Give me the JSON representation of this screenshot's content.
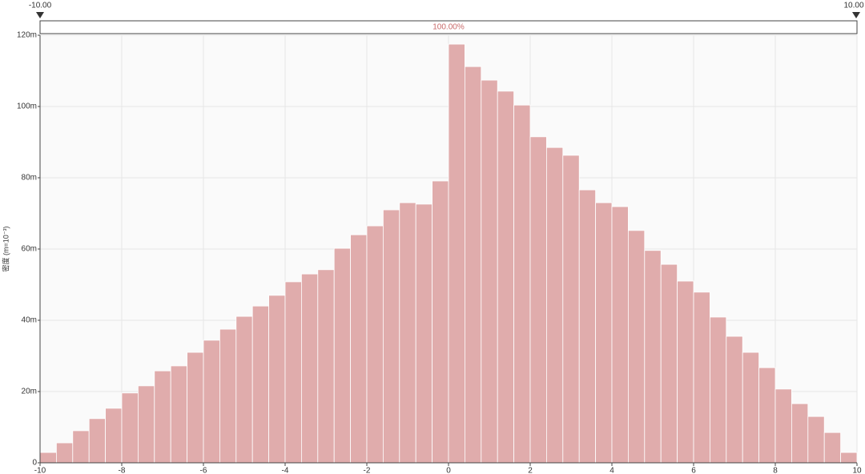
{
  "chart_data": {
    "type": "histogram",
    "y_label": "密度 (m=10⁻³)",
    "range_slider": {
      "min_label": "-10.00",
      "max_label": "10.00",
      "percent_label": "100.00%"
    },
    "bins": [
      -10,
      -9.6,
      -9.2,
      -8.8,
      -8.4,
      -8,
      -7.6,
      -7.2,
      -6.8,
      -6.4,
      -6,
      -5.6,
      -5.2,
      -4.8,
      -4.4,
      -4,
      -3.6,
      -3.2,
      -2.8,
      -2.4,
      -2,
      -1.6,
      -1.2,
      -0.8,
      -0.4,
      0,
      0.4,
      0.8,
      1.2,
      1.6,
      2,
      2.4,
      2.8,
      3.2,
      3.6,
      4,
      4.4,
      4.8,
      5.2,
      5.6,
      6,
      6.4,
      6.8,
      7.2,
      7.6,
      8,
      8.4,
      8.8,
      9.2,
      9.6,
      10
    ],
    "values": [
      2.9,
      5.6,
      9.0,
      12.4,
      15.3,
      19.6,
      21.6,
      25.8,
      27.2,
      31.0,
      34.4,
      37.5,
      41.1,
      44.0,
      47.0,
      50.8,
      53.0,
      54.2,
      60.2,
      64.0,
      66.5,
      71.0,
      73.0,
      72.6,
      79.1,
      117.5,
      111.2,
      107.4,
      104.3,
      100.4,
      91.5,
      88.5,
      86.3,
      76.6,
      73.0,
      71.9,
      65.2,
      59.6,
      55.7,
      51.0,
      47.9,
      40.9,
      35.5,
      31.0,
      26.7,
      20.7,
      16.6,
      13.0,
      8.5,
      2.9
    ],
    "color": "#e0acac",
    "xlim": [
      -10,
      10
    ],
    "xticks": [
      -10,
      -8,
      -6,
      -4,
      -2,
      0,
      2,
      4,
      6,
      8,
      10
    ],
    "ylim": [
      0,
      120
    ],
    "yticks": [
      0,
      {
        "value": 20,
        "label": "20m"
      },
      {
        "value": 40,
        "label": "40m"
      },
      {
        "value": 60,
        "label": "60m"
      },
      {
        "value": 80,
        "label": "80m"
      },
      {
        "value": 100,
        "label": "100m"
      },
      {
        "value": 120,
        "label": "120m"
      }
    ],
    "grid": true
  }
}
